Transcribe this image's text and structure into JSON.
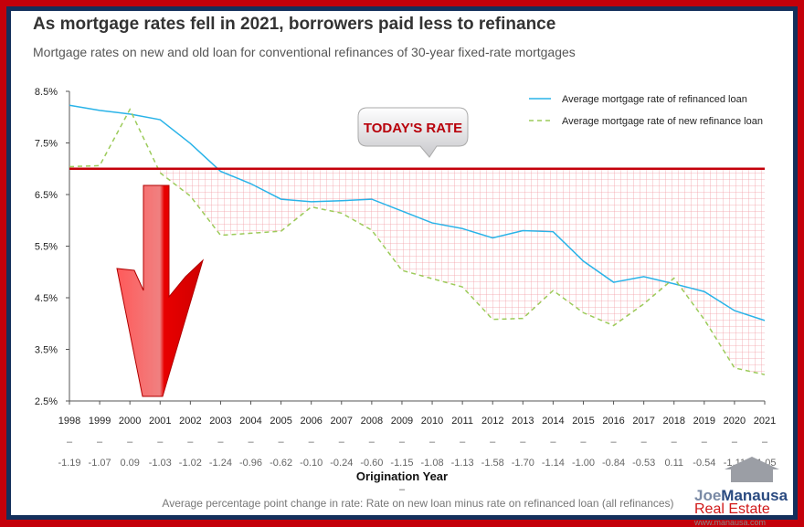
{
  "title": "As mortgage rates fell in 2021, borrowers paid less to refinance",
  "subtitle": "Mortgage rates on new and old loan for conventional refinances of 30-year fixed-rate mortgages",
  "colors": {
    "refinanced": "#29b3e8",
    "new": "#9ccb5a",
    "today_line": "#c4000a",
    "grid_fill": "#f3a0a8",
    "frame_outer": "#c4000a",
    "frame_inner": "#14305c"
  },
  "callout": {
    "label": "TODAY'S RATE",
    "icon": "down-arrow-icon"
  },
  "chart_data": {
    "type": "line",
    "title": "As mortgage rates fell in 2021, borrowers paid less to refinance",
    "subtitle": "Mortgage rates on new and old loan for conventional refinances of 30-year fixed-rate mortgages",
    "xlabel": "Origination Year",
    "ylabel": "",
    "ylim": [
      2.5,
      8.5
    ],
    "y_ticks": [
      "2.5%",
      "3.5%",
      "4.5%",
      "5.5%",
      "6.5%",
      "7.5%",
      "8.5%"
    ],
    "y_tick_values": [
      2.5,
      3.5,
      4.5,
      5.5,
      6.5,
      7.5,
      8.5
    ],
    "legend_position": "top-right",
    "grid": false,
    "reference_line": {
      "label": "TODAY'S RATE",
      "value": 7.0
    },
    "categories": [
      "1998",
      "1999",
      "2000",
      "2001",
      "2002",
      "2003",
      "2004",
      "2005",
      "2006",
      "2007",
      "2008",
      "2009",
      "2010",
      "2011",
      "2012",
      "2013",
      "2014",
      "2015",
      "2016",
      "2017",
      "2018",
      "2019",
      "2020",
      "2021"
    ],
    "series": [
      {
        "name": "Average mortgage rate of refinanced loan",
        "style": "solid",
        "values": [
          8.23,
          8.13,
          8.06,
          7.95,
          7.49,
          6.95,
          6.71,
          6.41,
          6.36,
          6.38,
          6.41,
          6.18,
          5.95,
          5.84,
          5.66,
          5.8,
          5.78,
          5.21,
          4.8,
          4.91,
          4.77,
          4.62,
          4.25,
          4.06
        ]
      },
      {
        "name": "Average mortgage rate of new refinance loan",
        "style": "dashed",
        "values": [
          7.04,
          7.06,
          8.15,
          6.92,
          6.47,
          5.71,
          5.75,
          5.79,
          6.26,
          6.14,
          5.81,
          5.03,
          4.87,
          4.71,
          4.08,
          4.1,
          4.64,
          4.21,
          3.96,
          4.38,
          4.88,
          4.08,
          3.14,
          3.01
        ]
      }
    ],
    "differences_label": "–",
    "differences": [
      "-1.19",
      "-1.07",
      "0.09",
      "-1.03",
      "-1.02",
      "-1.24",
      "-0.96",
      "-0.62",
      "-0.10",
      "-0.24",
      "-0.60",
      "-1.15",
      "-1.08",
      "-1.13",
      "-1.58",
      "-1.70",
      "-1.14",
      "-1.00",
      "-0.84",
      "-0.53",
      "0.11",
      "-0.54",
      "-1.11",
      "-1.05"
    ],
    "note_separator": "–",
    "note": "Average percentage point change in rate: Rate on new loan minus rate on refinanced loan (all refinances)"
  },
  "logo": {
    "joe": "Joe",
    "manausa": "Manausa",
    "real_estate": "Real Estate",
    "url": "www.manausa.com"
  }
}
